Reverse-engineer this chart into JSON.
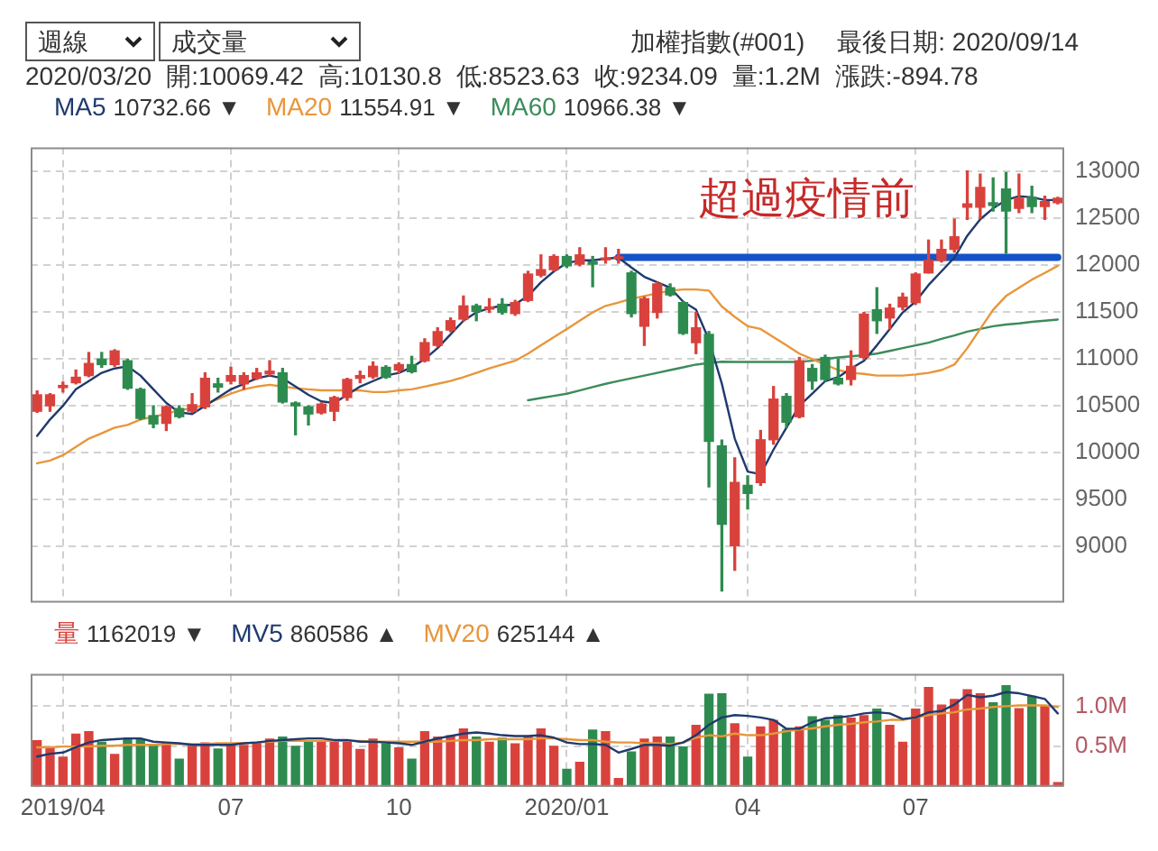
{
  "chart_data": [
    {
      "type": "candlestick",
      "categories": [
        null,
        null,
        "2019/04",
        null,
        null,
        null,
        null,
        null,
        null,
        null,
        null,
        null,
        null,
        null,
        null,
        "07",
        null,
        null,
        null,
        null,
        null,
        null,
        null,
        null,
        null,
        null,
        null,
        null,
        "10",
        null,
        null,
        null,
        null,
        null,
        null,
        null,
        null,
        null,
        null,
        null,
        null,
        "2020/01",
        null,
        null,
        null,
        null,
        null,
        null,
        null,
        null,
        null,
        null,
        null,
        null,
        null,
        "04",
        null,
        null,
        null,
        null,
        null,
        null,
        null,
        null,
        null,
        null,
        null,
        null,
        "07",
        null,
        null,
        null,
        null,
        null,
        null,
        null,
        null,
        null,
        null,
        null
      ],
      "ohlc": [
        [
          10439,
          10655,
          10427,
          10614
        ],
        [
          10497,
          10626,
          10439,
          10614
        ],
        [
          10691,
          10749,
          10644,
          10714
        ],
        [
          10743,
          10878,
          10731,
          10801
        ],
        [
          10819,
          11065,
          10807,
          10948
        ],
        [
          10995,
          11065,
          10907,
          10936
        ],
        [
          10936,
          11094,
          10919,
          11082
        ],
        [
          10977,
          10995,
          10673,
          10685
        ],
        [
          10673,
          10685,
          10351,
          10363
        ],
        [
          10392,
          10497,
          10264,
          10304
        ],
        [
          10310,
          10497,
          10234,
          10486
        ],
        [
          10468,
          10497,
          10369,
          10381
        ],
        [
          10439,
          10626,
          10427,
          10509
        ],
        [
          10486,
          10848,
          10468,
          10790
        ],
        [
          10731,
          10790,
          10644,
          10696
        ],
        [
          10760,
          10907,
          10731,
          10819
        ],
        [
          10731,
          10848,
          10673,
          10819
        ],
        [
          10790,
          10895,
          10778,
          10848
        ],
        [
          10837,
          10977,
          10819,
          10866
        ],
        [
          10848,
          10895,
          10527,
          10538
        ],
        [
          10527,
          10538,
          10188,
          10497
        ],
        [
          10486,
          10497,
          10293,
          10410
        ],
        [
          10422,
          10527,
          10410,
          10515
        ],
        [
          10439,
          10597,
          10340,
          10585
        ],
        [
          10585,
          10790,
          10556,
          10778
        ],
        [
          10790,
          10866,
          10743,
          10819
        ],
        [
          10807,
          10965,
          10790,
          10918
        ],
        [
          10907,
          10924,
          10790,
          10801
        ],
        [
          10878,
          10954,
          10848,
          10936
        ],
        [
          10936,
          11024,
          10848,
          10860
        ],
        [
          10977,
          11211,
          10965,
          11170
        ],
        [
          11141,
          11328,
          11129,
          11287
        ],
        [
          11304,
          11433,
          11287,
          11404
        ],
        [
          11421,
          11667,
          11404,
          11562
        ],
        [
          11562,
          11579,
          11404,
          11503
        ],
        [
          11527,
          11638,
          11492,
          11550
        ],
        [
          11579,
          11638,
          11474,
          11492
        ],
        [
          11480,
          11620,
          11462,
          11597
        ],
        [
          11620,
          11930,
          11608,
          11901
        ],
        [
          11889,
          12105,
          11872,
          11948
        ],
        [
          11948,
          12105,
          11936,
          12088
        ],
        [
          12088,
          12105,
          11971,
          11989
        ],
        [
          12006,
          12181,
          11989,
          12105
        ],
        [
          12029,
          12088,
          11766,
          12006
        ],
        [
          12053,
          12181,
          12018,
          12070
        ],
        [
          12065,
          12164,
          12018,
          12082
        ],
        [
          11913,
          11930,
          11445,
          11480
        ],
        [
          11345,
          11655,
          11141,
          11638
        ],
        [
          11492,
          11813,
          11433,
          11796
        ],
        [
          11755,
          11796,
          11667,
          11679
        ],
        [
          11597,
          11608,
          11258,
          11269
        ],
        [
          11170,
          11492,
          11053,
          11328
        ],
        [
          11258,
          11288,
          9632,
          10118
        ],
        [
          10069.42,
          10130.8,
          8523.63,
          9234.09
        ],
        [
          9007,
          9942,
          8744,
          9679
        ],
        [
          9650,
          9749,
          9398,
          9562
        ],
        [
          9679,
          10234,
          9650,
          10135
        ],
        [
          10135,
          10702,
          10088,
          10568
        ],
        [
          10597,
          10626,
          10264,
          10322
        ],
        [
          10381,
          11012,
          10369,
          10977
        ],
        [
          10895,
          10936,
          10673,
          10761
        ],
        [
          11012,
          11036,
          10761,
          10778
        ],
        [
          10790,
          10995,
          10720,
          10731
        ],
        [
          10778,
          11082,
          10720,
          10918
        ],
        [
          11012,
          11492,
          10995,
          11474
        ],
        [
          11521,
          11755,
          11269,
          11404
        ],
        [
          11433,
          11579,
          11316,
          11538
        ],
        [
          11550,
          11696,
          11521,
          11655
        ],
        [
          11597,
          11913,
          11579,
          11901
        ],
        [
          11913,
          12263,
          11913,
          12047
        ],
        [
          12047,
          12263,
          12030,
          12164
        ],
        [
          12164,
          12485,
          12135,
          12298
        ],
        [
          12614,
          13000,
          12485,
          12649
        ],
        [
          12614,
          12965,
          12497,
          12825
        ],
        [
          12661,
          12924,
          12573,
          12632
        ],
        [
          12807,
          12982,
          12123,
          12573
        ],
        [
          12602,
          12965,
          12556,
          12708
        ],
        [
          12719,
          12836,
          12556,
          12620
        ],
        [
          12620,
          12731,
          12485,
          12673
        ],
        [
          12661,
          12719,
          12649,
          12708
        ]
      ],
      "colors": [
        "#d9423c",
        "#d9423c",
        "#d9423c",
        "#d9423c",
        "#d9423c",
        "#2e8b4f",
        "#d9423c",
        "#2e8b4f",
        "#2e8b4f",
        "#2e8b4f",
        "#d9423c",
        "#2e8b4f",
        "#d9423c",
        "#d9423c",
        "#2e8b4f",
        "#d9423c",
        "#d9423c",
        "#d9423c",
        "#d9423c",
        "#2e8b4f",
        "#2e8b4f",
        "#2e8b4f",
        "#d9423c",
        "#d9423c",
        "#d9423c",
        "#d9423c",
        "#d9423c",
        "#2e8b4f",
        "#d9423c",
        "#2e8b4f",
        "#d9423c",
        "#d9423c",
        "#d9423c",
        "#d9423c",
        "#2e8b4f",
        "#d9423c",
        "#2e8b4f",
        "#d9423c",
        "#d9423c",
        "#d9423c",
        "#d9423c",
        "#2e8b4f",
        "#d9423c",
        "#2e8b4f",
        "#d9423c",
        "#d9423c",
        "#2e8b4f",
        "#d9423c",
        "#d9423c",
        "#2e8b4f",
        "#2e8b4f",
        "#d9423c",
        "#2e8b4f",
        "#2e8b4f",
        "#d9423c",
        "#2e8b4f",
        "#d9423c",
        "#d9423c",
        "#2e8b4f",
        "#d9423c",
        "#2e8b4f",
        "#2e8b4f",
        "#2e8b4f",
        "#d9423c",
        "#d9423c",
        "#2e8b4f",
        "#d9423c",
        "#d9423c",
        "#d9423c",
        "#d9423c",
        "#d9423c",
        "#d9423c",
        "#d9423c",
        "#d9423c",
        "#2e8b4f",
        "#2e8b4f",
        "#d9423c",
        "#2e8b4f",
        "#d9423c",
        "#d9423c"
      ],
      "series": [
        {
          "type": "line",
          "name": "MA5",
          "color": "#1f3a6e",
          "values": [
            10176,
            10351,
            10497,
            10673,
            10760,
            10848,
            10895,
            10918,
            10819,
            10673,
            10527,
            10427,
            10410,
            10497,
            10585,
            10673,
            10731,
            10790,
            10819,
            10790,
            10702,
            10614,
            10544,
            10527,
            10614,
            10702,
            10760,
            10819,
            10848,
            10907,
            10995,
            11112,
            11258,
            11404,
            11492,
            11538,
            11562,
            11579,
            11667,
            11813,
            11930,
            12018,
            12047,
            12047,
            12065,
            12076,
            11971,
            11872,
            11813,
            11755,
            11608,
            11521,
            11199,
            10732.66,
            10147,
            9796,
            9767,
            10030,
            10264,
            10497,
            10626,
            10760,
            10802,
            10895,
            10977,
            11141,
            11316,
            11492,
            11608,
            11784,
            11930,
            12076,
            12310,
            12485,
            12602,
            12690,
            12731,
            12719,
            12690,
            12690
          ]
        },
        {
          "type": "line",
          "name": "MA20",
          "color": "#e8963a",
          "values": [
            9884,
            9913,
            9971,
            10059,
            10147,
            10205,
            10264,
            10293,
            10351,
            10381,
            10410,
            10451,
            10468,
            10509,
            10568,
            10626,
            10673,
            10702,
            10720,
            10702,
            10685,
            10673,
            10661,
            10661,
            10661,
            10661,
            10644,
            10644,
            10661,
            10673,
            10702,
            10731,
            10761,
            10802,
            10848,
            10895,
            10936,
            10977,
            11053,
            11141,
            11228,
            11316,
            11404,
            11492,
            11562,
            11597,
            11638,
            11667,
            11696,
            11725,
            11737,
            11737,
            11725,
            11554.91,
            11445,
            11345,
            11316,
            11228,
            11141,
            11053,
            10995,
            10936,
            10878,
            10848,
            10837,
            10819,
            10819,
            10819,
            10831,
            10848,
            10878,
            10936,
            11112,
            11316,
            11521,
            11667,
            11755,
            11842,
            11913,
            11989
          ]
        },
        {
          "type": "line",
          "name": "MA60",
          "color": "#3d8b5c",
          "values": [
            null,
            null,
            null,
            null,
            null,
            null,
            null,
            null,
            null,
            null,
            null,
            null,
            null,
            null,
            null,
            null,
            null,
            null,
            null,
            null,
            null,
            null,
            null,
            null,
            null,
            null,
            null,
            null,
            null,
            null,
            null,
            null,
            null,
            null,
            null,
            null,
            null,
            null,
            10556,
            10580,
            10603,
            10626,
            10661,
            10696,
            10731,
            10761,
            10790,
            10819,
            10848,
            10878,
            10907,
            10936,
            10953,
            10966.38,
            10965,
            10965,
            10965,
            10965,
            10965,
            10965,
            10977,
            10995,
            11012,
            11024,
            11036,
            11053,
            11082,
            11112,
            11141,
            11170,
            11211,
            11246,
            11287,
            11316,
            11345,
            11363,
            11375,
            11392,
            11404,
            11416
          ]
        },
        {
          "type": "line",
          "color": "#1452c8",
          "values": [
            null,
            null,
            null,
            null,
            null,
            null,
            null,
            null,
            null,
            null,
            null,
            null,
            null,
            null,
            null,
            null,
            null,
            null,
            null,
            null,
            null,
            null,
            null,
            null,
            null,
            null,
            null,
            null,
            null,
            null,
            null,
            null,
            null,
            null,
            null,
            null,
            null,
            null,
            null,
            null,
            null,
            null,
            null,
            null,
            null,
            12080,
            12080,
            12080,
            12080,
            12080,
            12080,
            12080,
            12080,
            12080,
            12080,
            12080,
            12080,
            12080,
            12080,
            12080,
            12080,
            12080,
            12080,
            12080,
            12080,
            12080,
            12080,
            12080,
            12080,
            12080,
            12080,
            12080,
            12080,
            12080,
            12080,
            12080,
            12080,
            12080,
            12080,
            12080
          ]
        }
      ],
      "ylim": [
        8400,
        13250
      ],
      "yticks": [
        9000,
        9500,
        10000,
        10500,
        11000,
        11500,
        12000,
        12500,
        13000
      ],
      "grid": true,
      "tick_labels": "y",
      "legend": "top left",
      "marker": "none",
      "annotations": [
        "10732.66 ▼",
        "11554.91 ▼",
        "10966.38 ▼",
        "週線",
        "成交量",
        "加權指數(#001)",
        "最後日期: 2020/09/14",
        "2020/03/20",
        "開:10069.42",
        "高:10130.8",
        "低:8523.63",
        "收:9234.09",
        "量:1.2M",
        "漲跌:-894.78",
        "超過疫情前"
      ]
    },
    {
      "type": "bar",
      "categories": [
        null,
        null,
        "2019/04",
        null,
        null,
        null,
        null,
        null,
        null,
        null,
        null,
        null,
        null,
        null,
        null,
        "07",
        null,
        null,
        null,
        null,
        null,
        null,
        null,
        null,
        null,
        null,
        null,
        null,
        "10",
        null,
        null,
        null,
        null,
        null,
        null,
        null,
        null,
        null,
        null,
        null,
        null,
        "2020/01",
        null,
        null,
        null,
        null,
        null,
        null,
        null,
        null,
        null,
        null,
        null,
        null,
        null,
        "04",
        null,
        null,
        null,
        null,
        null,
        null,
        null,
        null,
        null,
        null,
        null,
        null,
        "07",
        null,
        null,
        null,
        null,
        null,
        null,
        null,
        null,
        null,
        null,
        null
      ],
      "series": [
        {
          "name": "量",
          "color": "#d9423c",
          "colors": [
            "#d9423c",
            "#d9423c",
            "#d9423c",
            "#d9423c",
            "#d9423c",
            "#2e8b4f",
            "#d9423c",
            "#2e8b4f",
            "#2e8b4f",
            "#2e8b4f",
            "#d9423c",
            "#2e8b4f",
            "#d9423c",
            "#d9423c",
            "#2e8b4f",
            "#d9423c",
            "#d9423c",
            "#d9423c",
            "#d9423c",
            "#2e8b4f",
            "#2e8b4f",
            "#2e8b4f",
            "#d9423c",
            "#d9423c",
            "#d9423c",
            "#d9423c",
            "#d9423c",
            "#2e8b4f",
            "#d9423c",
            "#2e8b4f",
            "#d9423c",
            "#d9423c",
            "#d9423c",
            "#d9423c",
            "#2e8b4f",
            "#d9423c",
            "#2e8b4f",
            "#d9423c",
            "#d9423c",
            "#d9423c",
            "#d9423c",
            "#2e8b4f",
            "#d9423c",
            "#2e8b4f",
            "#d9423c",
            "#d9423c",
            "#2e8b4f",
            "#d9423c",
            "#d9423c",
            "#2e8b4f",
            "#2e8b4f",
            "#d9423c",
            "#2e8b4f",
            "#2e8b4f",
            "#d9423c",
            "#2e8b4f",
            "#d9423c",
            "#d9423c",
            "#2e8b4f",
            "#d9423c",
            "#2e8b4f",
            "#2e8b4f",
            "#2e8b4f",
            "#d9423c",
            "#d9423c",
            "#2e8b4f",
            "#d9423c",
            "#d9423c",
            "#d9423c",
            "#d9423c",
            "#d9423c",
            "#d9423c",
            "#d9423c",
            "#d9423c",
            "#2e8b4f",
            "#2e8b4f",
            "#d9423c",
            "#2e8b4f",
            "#d9423c",
            "#d9423c"
          ],
          "values": [
            0.58,
            0.5,
            0.375,
            0.66,
            0.69,
            0.56,
            0.41,
            0.61,
            0.59,
            0.53,
            0.55,
            0.35,
            0.51,
            0.55,
            0.475,
            0.53,
            0.52,
            0.55,
            0.6,
            0.625,
            0.51,
            0.58,
            0.58,
            0.56,
            0.58,
            0.47,
            0.6,
            0.54,
            0.49,
            0.35,
            0.69,
            0.625,
            0.64,
            0.725,
            0.625,
            0.56,
            0.61,
            0.54,
            0.625,
            0.725,
            0.51,
            0.225,
            0.31,
            0.71,
            0.69,
            0.11,
            0.44,
            0.6,
            0.625,
            0.625,
            0.5,
            0.77,
            1.156,
            1.162019,
            0.79,
            0.375,
            0.75,
            0.83,
            0.72,
            0.75,
            0.875,
            0.83,
            0.89,
            0.86,
            0.89,
            0.97,
            0.77,
            0.56,
            0.97,
            1.24,
            1.02,
            1.09,
            1.21,
            1.16,
            1.05,
            1.26,
            0.975,
            1.13,
            1.01,
            0.06
          ]
        },
        {
          "type": "line",
          "name": "MV5",
          "color": "#1f3a6e",
          "values": [
            0.375,
            0.41,
            0.425,
            0.49,
            0.55,
            0.58,
            0.59,
            0.6,
            0.6,
            0.56,
            0.55,
            0.54,
            0.52,
            0.52,
            0.52,
            0.52,
            0.54,
            0.55,
            0.57,
            0.58,
            0.59,
            0.6,
            0.6,
            0.58,
            0.58,
            0.56,
            0.56,
            0.55,
            0.54,
            0.52,
            0.56,
            0.6,
            0.63,
            0.66,
            0.675,
            0.66,
            0.64,
            0.63,
            0.63,
            0.64,
            0.61,
            0.55,
            0.53,
            0.53,
            0.52,
            0.425,
            0.47,
            0.52,
            0.52,
            0.51,
            0.55,
            0.64,
            0.77,
            0.860586,
            0.89,
            0.88,
            0.86,
            0.83,
            0.72,
            0.72,
            0.8,
            0.85,
            0.86,
            0.88,
            0.91,
            0.925,
            0.91,
            0.84,
            0.86,
            0.925,
            0.94,
            1.02,
            1.14,
            1.11,
            1.13,
            1.175,
            1.16,
            1.125,
            1.09,
            0.91
          ]
        },
        {
          "type": "line",
          "name": "MV20",
          "color": "#e8963a",
          "values": [
            0.49,
            0.49,
            0.5,
            0.5,
            0.5,
            0.51,
            0.51,
            0.52,
            0.52,
            0.52,
            0.53,
            0.53,
            0.53,
            0.53,
            0.54,
            0.54,
            0.54,
            0.55,
            0.56,
            0.57,
            0.57,
            0.57,
            0.57,
            0.57,
            0.57,
            0.57,
            0.56,
            0.56,
            0.56,
            0.56,
            0.56,
            0.56,
            0.57,
            0.58,
            0.58,
            0.59,
            0.59,
            0.59,
            0.59,
            0.6,
            0.6,
            0.59,
            0.58,
            0.58,
            0.56,
            0.55,
            0.55,
            0.54,
            0.54,
            0.53,
            0.55,
            0.61,
            0.64,
            0.625144,
            0.66,
            0.64,
            0.64,
            0.66,
            0.69,
            0.71,
            0.725,
            0.75,
            0.77,
            0.78,
            0.8,
            0.81,
            0.83,
            0.83,
            0.86,
            0.89,
            0.91,
            0.925,
            0.96,
            0.97,
            0.99,
            1.0,
            1.01,
            1.01,
            1.01,
            0.99
          ]
        }
      ],
      "ylim": [
        0,
        1.4
      ],
      "yticks": [
        {
          "value": 0.5,
          "label": "0.5M"
        },
        {
          "value": 1,
          "label": "1.0M"
        }
      ],
      "grid": true,
      "legend": "top left",
      "marker": "none",
      "annotations": [
        "1162019 ▼",
        "860586 ▲",
        "625144 ▲"
      ]
    }
  ]
}
